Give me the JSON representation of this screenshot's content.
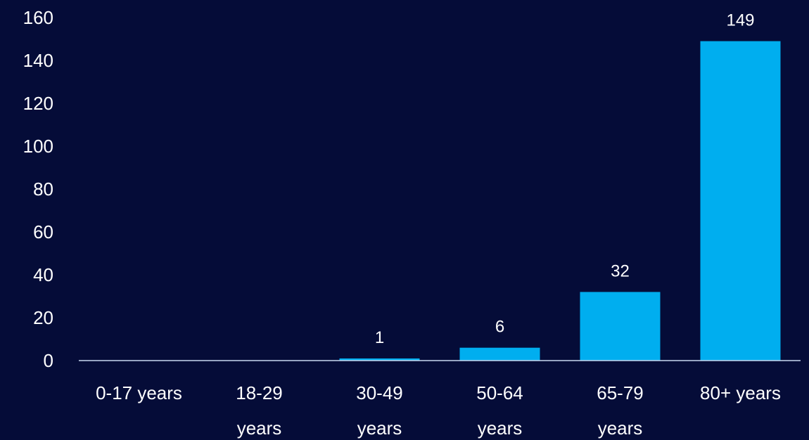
{
  "chart_data": {
    "type": "bar",
    "categories": [
      [
        "0-17 years"
      ],
      [
        "18-29",
        "years"
      ],
      [
        "30-49",
        "years"
      ],
      [
        "50-64",
        "years"
      ],
      [
        "65-79",
        "years"
      ],
      [
        "80+ years"
      ]
    ],
    "values": [
      0,
      0,
      1,
      6,
      32,
      149
    ],
    "data_labels": [
      "",
      "",
      "1",
      "6",
      "32",
      "149"
    ],
    "yticks": [
      "0",
      "20",
      "40",
      "60",
      "80",
      "100",
      "120",
      "140",
      "160"
    ],
    "ylim": [
      0,
      160
    ],
    "title": "",
    "xlabel": "",
    "ylabel": "",
    "grid": false,
    "legend": "none",
    "colors": {
      "background": "#050c38",
      "bar": "#00aeef",
      "axis": "#c8d8f0",
      "text": "#ffffff"
    }
  }
}
